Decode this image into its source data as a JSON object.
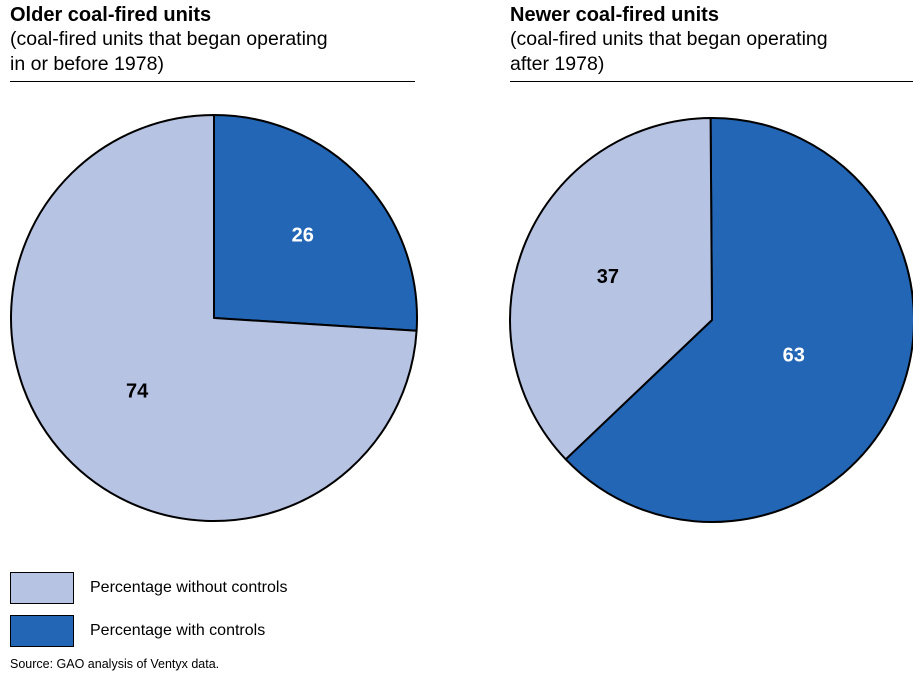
{
  "colors": {
    "without_controls": "#b7c3e3",
    "with_controls": "#2266b5",
    "outline": "#000000"
  },
  "chart_data": [
    {
      "type": "pie",
      "title": "Older coal-fired units",
      "subtitle_lines": [
        "(coal-fired units that began operating",
        "in or before 1978)"
      ],
      "slices": [
        {
          "label": "Percentage with controls",
          "value": 26,
          "display": "26",
          "color": "#2266b5",
          "text_color": "#ffffff"
        },
        {
          "label": "Percentage without controls",
          "value": 74,
          "display": "74",
          "color": "#b7c3e3",
          "text_color": "#000000"
        }
      ]
    },
    {
      "type": "pie",
      "title": "Newer coal-fired units",
      "subtitle_lines": [
        "(coal-fired units that began operating",
        "after 1978)"
      ],
      "slices": [
        {
          "label": "Percentage with controls",
          "value": 63,
          "display": "63",
          "color": "#2266b5",
          "text_color": "#ffffff"
        },
        {
          "label": "Percentage without controls",
          "value": 37,
          "display": "37",
          "color": "#b7c3e3",
          "text_color": "#000000"
        }
      ]
    }
  ],
  "legend": [
    {
      "label": "Percentage without controls",
      "color": "#b7c3e3"
    },
    {
      "label": "Percentage with controls",
      "color": "#2266b5"
    }
  ],
  "source": "Source: GAO analysis of Ventyx data."
}
